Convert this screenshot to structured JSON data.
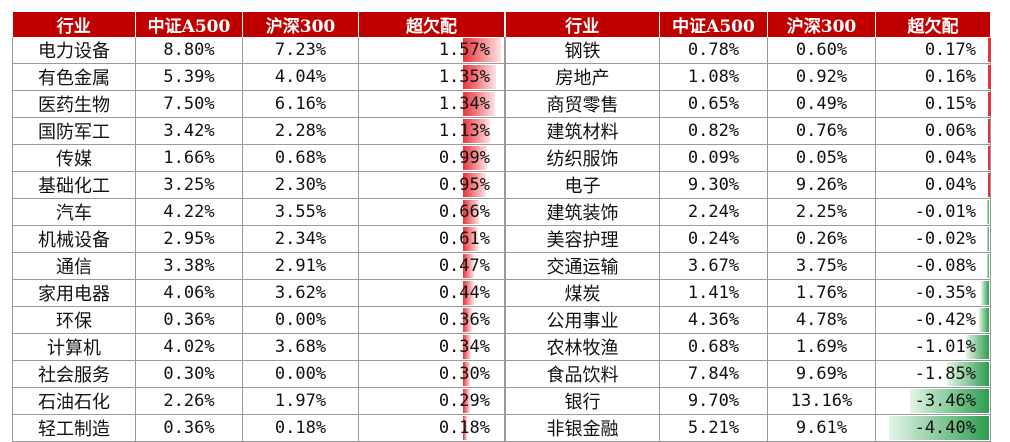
{
  "headers": [
    "行业",
    "中证A500",
    "沪深300",
    "超欠配"
  ],
  "colors": {
    "header_bg": "#c00000",
    "positive_bar": "#e8323a",
    "negative_bar": "#2f9e50"
  },
  "left_rows": [
    {
      "industry": "电力设备",
      "a500": "8.80%",
      "hs300": "7.23%",
      "overweight": "1.57%",
      "ow_value": 1.57
    },
    {
      "industry": "有色金属",
      "a500": "5.39%",
      "hs300": "4.04%",
      "overweight": "1.35%",
      "ow_value": 1.35
    },
    {
      "industry": "医药生物",
      "a500": "7.50%",
      "hs300": "6.16%",
      "overweight": "1.34%",
      "ow_value": 1.34
    },
    {
      "industry": "国防军工",
      "a500": "3.42%",
      "hs300": "2.28%",
      "overweight": "1.13%",
      "ow_value": 1.13
    },
    {
      "industry": "传媒",
      "a500": "1.66%",
      "hs300": "0.68%",
      "overweight": "0.99%",
      "ow_value": 0.99
    },
    {
      "industry": "基础化工",
      "a500": "3.25%",
      "hs300": "2.30%",
      "overweight": "0.95%",
      "ow_value": 0.95
    },
    {
      "industry": "汽车",
      "a500": "4.22%",
      "hs300": "3.55%",
      "overweight": "0.66%",
      "ow_value": 0.66
    },
    {
      "industry": "机械设备",
      "a500": "2.95%",
      "hs300": "2.34%",
      "overweight": "0.61%",
      "ow_value": 0.61
    },
    {
      "industry": "通信",
      "a500": "3.38%",
      "hs300": "2.91%",
      "overweight": "0.47%",
      "ow_value": 0.47
    },
    {
      "industry": "家用电器",
      "a500": "4.06%",
      "hs300": "3.62%",
      "overweight": "0.44%",
      "ow_value": 0.44
    },
    {
      "industry": "环保",
      "a500": "0.36%",
      "hs300": "0.00%",
      "overweight": "0.36%",
      "ow_value": 0.36
    },
    {
      "industry": "计算机",
      "a500": "4.02%",
      "hs300": "3.68%",
      "overweight": "0.34%",
      "ow_value": 0.34
    },
    {
      "industry": "社会服务",
      "a500": "0.30%",
      "hs300": "0.00%",
      "overweight": "0.30%",
      "ow_value": 0.3
    },
    {
      "industry": "石油石化",
      "a500": "2.26%",
      "hs300": "1.97%",
      "overweight": "0.29%",
      "ow_value": 0.29
    },
    {
      "industry": "轻工制造",
      "a500": "0.36%",
      "hs300": "0.18%",
      "overweight": "0.18%",
      "ow_value": 0.18
    }
  ],
  "right_rows": [
    {
      "industry": "钢铁",
      "a500": "0.78%",
      "hs300": "0.60%",
      "overweight": "0.17%",
      "ow_value": 0.17
    },
    {
      "industry": "房地产",
      "a500": "1.08%",
      "hs300": "0.92%",
      "overweight": "0.16%",
      "ow_value": 0.16
    },
    {
      "industry": "商贸零售",
      "a500": "0.65%",
      "hs300": "0.49%",
      "overweight": "0.15%",
      "ow_value": 0.15
    },
    {
      "industry": "建筑材料",
      "a500": "0.82%",
      "hs300": "0.76%",
      "overweight": "0.06%",
      "ow_value": 0.06
    },
    {
      "industry": "纺织服饰",
      "a500": "0.09%",
      "hs300": "0.05%",
      "overweight": "0.04%",
      "ow_value": 0.04
    },
    {
      "industry": "电子",
      "a500": "9.30%",
      "hs300": "9.26%",
      "overweight": "0.04%",
      "ow_value": 0.04
    },
    {
      "industry": "建筑装饰",
      "a500": "2.24%",
      "hs300": "2.25%",
      "overweight": "-0.01%",
      "ow_value": -0.01
    },
    {
      "industry": "美容护理",
      "a500": "0.24%",
      "hs300": "0.26%",
      "overweight": "-0.02%",
      "ow_value": -0.02
    },
    {
      "industry": "交通运输",
      "a500": "3.67%",
      "hs300": "3.75%",
      "overweight": "-0.08%",
      "ow_value": -0.08
    },
    {
      "industry": "煤炭",
      "a500": "1.41%",
      "hs300": "1.76%",
      "overweight": "-0.35%",
      "ow_value": -0.35
    },
    {
      "industry": "公用事业",
      "a500": "4.36%",
      "hs300": "4.78%",
      "overweight": "-0.42%",
      "ow_value": -0.42
    },
    {
      "industry": "农林牧渔",
      "a500": "0.68%",
      "hs300": "1.69%",
      "overweight": "-1.01%",
      "ow_value": -1.01
    },
    {
      "industry": "食品饮料",
      "a500": "7.84%",
      "hs300": "9.69%",
      "overweight": "-1.85%",
      "ow_value": -1.85
    },
    {
      "industry": "银行",
      "a500": "9.70%",
      "hs300": "13.16%",
      "overweight": "-3.46%",
      "ow_value": -3.46
    },
    {
      "industry": "非银金融",
      "a500": "5.21%",
      "hs300": "9.61%",
      "overweight": "-4.40%",
      "ow_value": -4.4
    }
  ]
}
